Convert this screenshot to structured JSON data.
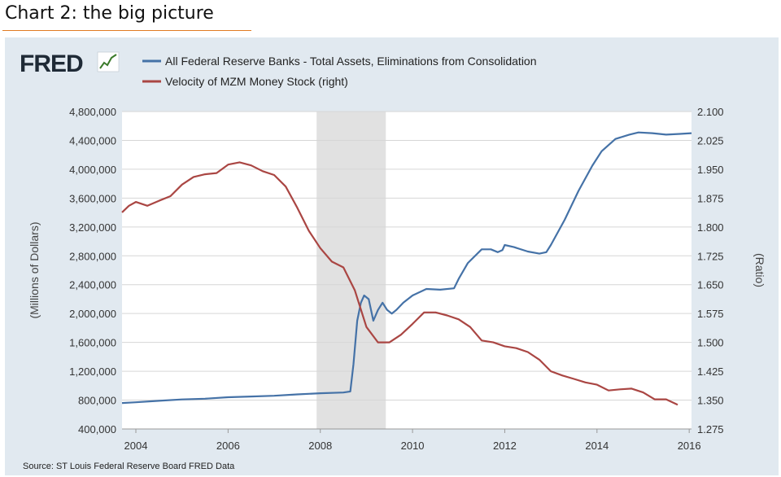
{
  "slide": {
    "title": "Chart 2: the big picture",
    "source": "Source: ST Louis Federal Reserve Board FRED Data"
  },
  "logo": {
    "text": "FRED"
  },
  "colors": {
    "assets": "#4572a7",
    "velocity": "#aa4643",
    "recession": "#e1e1e1",
    "panel": "#e1e9f0",
    "grid": "#d6d6d6"
  },
  "chart_data": {
    "type": "line",
    "xlim": [
      2003.7,
      2016.05
    ],
    "ylim_left": [
      400000,
      4800000
    ],
    "ylim_right": [
      1.275,
      2.1
    ],
    "ylabel_left": "(Millions of Dollars)",
    "ylabel_right": "(Ratio)",
    "x_ticks": [
      {
        "value": 2004,
        "label": "2004"
      },
      {
        "value": 2006,
        "label": "2006"
      },
      {
        "value": 2008,
        "label": "2008"
      },
      {
        "value": 2010,
        "label": "2010"
      },
      {
        "value": 2012,
        "label": "2012"
      },
      {
        "value": 2014,
        "label": "2014"
      },
      {
        "value": 2016,
        "label": "2016"
      }
    ],
    "y_left_ticks": [
      {
        "value": 400000,
        "label": "400,000"
      },
      {
        "value": 800000,
        "label": "800,000"
      },
      {
        "value": 1200000,
        "label": "1,200,000"
      },
      {
        "value": 1600000,
        "label": "1,600,000"
      },
      {
        "value": 2000000,
        "label": "2,000,000"
      },
      {
        "value": 2400000,
        "label": "2,400,000"
      },
      {
        "value": 2800000,
        "label": "2,800,000"
      },
      {
        "value": 3200000,
        "label": "3,200,000"
      },
      {
        "value": 3600000,
        "label": "3,600,000"
      },
      {
        "value": 4000000,
        "label": "4,000,000"
      },
      {
        "value": 4400000,
        "label": "4,400,000"
      },
      {
        "value": 4800000,
        "label": "4,800,000"
      }
    ],
    "y_right_ticks": [
      {
        "value": 1.275,
        "label": "1.275"
      },
      {
        "value": 1.35,
        "label": "1.350"
      },
      {
        "value": 1.425,
        "label": "1.425"
      },
      {
        "value": 1.5,
        "label": "1.500"
      },
      {
        "value": 1.575,
        "label": "1.575"
      },
      {
        "value": 1.65,
        "label": "1.650"
      },
      {
        "value": 1.725,
        "label": "1.725"
      },
      {
        "value": 1.8,
        "label": "1.800"
      },
      {
        "value": 1.875,
        "label": "1.875"
      },
      {
        "value": 1.95,
        "label": "1.950"
      },
      {
        "value": 2.025,
        "label": "2.025"
      },
      {
        "value": 2.1,
        "label": "2.100"
      }
    ],
    "recession": {
      "start": 2007.92,
      "end": 2009.42
    },
    "series": [
      {
        "name": "All Federal Reserve Banks - Total Assets, Eliminations from Consolidation",
        "axis": "left",
        "x": [
          2003.7,
          2004.0,
          2004.5,
          2005.0,
          2005.5,
          2006.0,
          2006.5,
          2007.0,
          2007.5,
          2008.0,
          2008.5,
          2008.65,
          2008.72,
          2008.8,
          2008.88,
          2008.95,
          2009.05,
          2009.15,
          2009.25,
          2009.35,
          2009.45,
          2009.55,
          2009.65,
          2009.8,
          2010.0,
          2010.3,
          2010.6,
          2010.9,
          2011.0,
          2011.2,
          2011.5,
          2011.7,
          2011.85,
          2011.95,
          2012.0,
          2012.2,
          2012.5,
          2012.75,
          2012.9,
          2013.0,
          2013.3,
          2013.6,
          2013.9,
          2014.1,
          2014.4,
          2014.7,
          2014.9,
          2015.2,
          2015.5,
          2015.8,
          2016.05
        ],
        "values": [
          760000,
          770000,
          790000,
          810000,
          820000,
          840000,
          850000,
          860000,
          880000,
          895000,
          905000,
          920000,
          1300000,
          1900000,
          2150000,
          2250000,
          2200000,
          1900000,
          2050000,
          2150000,
          2050000,
          2000000,
          2050000,
          2150000,
          2250000,
          2340000,
          2330000,
          2350000,
          2480000,
          2700000,
          2890000,
          2890000,
          2850000,
          2880000,
          2950000,
          2920000,
          2860000,
          2830000,
          2850000,
          2950000,
          3300000,
          3700000,
          4050000,
          4250000,
          4420000,
          4480000,
          4510000,
          4500000,
          4480000,
          4490000,
          4500000
        ]
      },
      {
        "name": "Velocity of MZM Money Stock (right)",
        "axis": "right",
        "x": [
          2003.7,
          2003.85,
          2004.0,
          2004.25,
          2004.5,
          2004.75,
          2005.0,
          2005.25,
          2005.5,
          2005.75,
          2006.0,
          2006.25,
          2006.5,
          2006.75,
          2007.0,
          2007.25,
          2007.5,
          2007.75,
          2008.0,
          2008.25,
          2008.5,
          2008.75,
          2009.0,
          2009.25,
          2009.5,
          2009.75,
          2010.0,
          2010.25,
          2010.5,
          2010.75,
          2011.0,
          2011.25,
          2011.5,
          2011.75,
          2012.0,
          2012.25,
          2012.5,
          2012.75,
          2013.0,
          2013.25,
          2013.5,
          2013.75,
          2014.0,
          2014.25,
          2014.5,
          2014.75,
          2015.0,
          2015.25,
          2015.5,
          2015.75
        ],
        "values": [
          1.838,
          1.855,
          1.865,
          1.855,
          1.868,
          1.88,
          1.91,
          1.93,
          1.937,
          1.94,
          1.962,
          1.968,
          1.96,
          1.945,
          1.935,
          1.905,
          1.85,
          1.79,
          1.745,
          1.71,
          1.695,
          1.635,
          1.54,
          1.5,
          1.5,
          1.52,
          1.548,
          1.578,
          1.578,
          1.57,
          1.56,
          1.54,
          1.505,
          1.5,
          1.49,
          1.485,
          1.475,
          1.455,
          1.425,
          1.414,
          1.405,
          1.396,
          1.39,
          1.375,
          1.378,
          1.38,
          1.37,
          1.352,
          1.352,
          1.338
        ]
      }
    ],
    "legend": {
      "position": "top-left"
    }
  }
}
